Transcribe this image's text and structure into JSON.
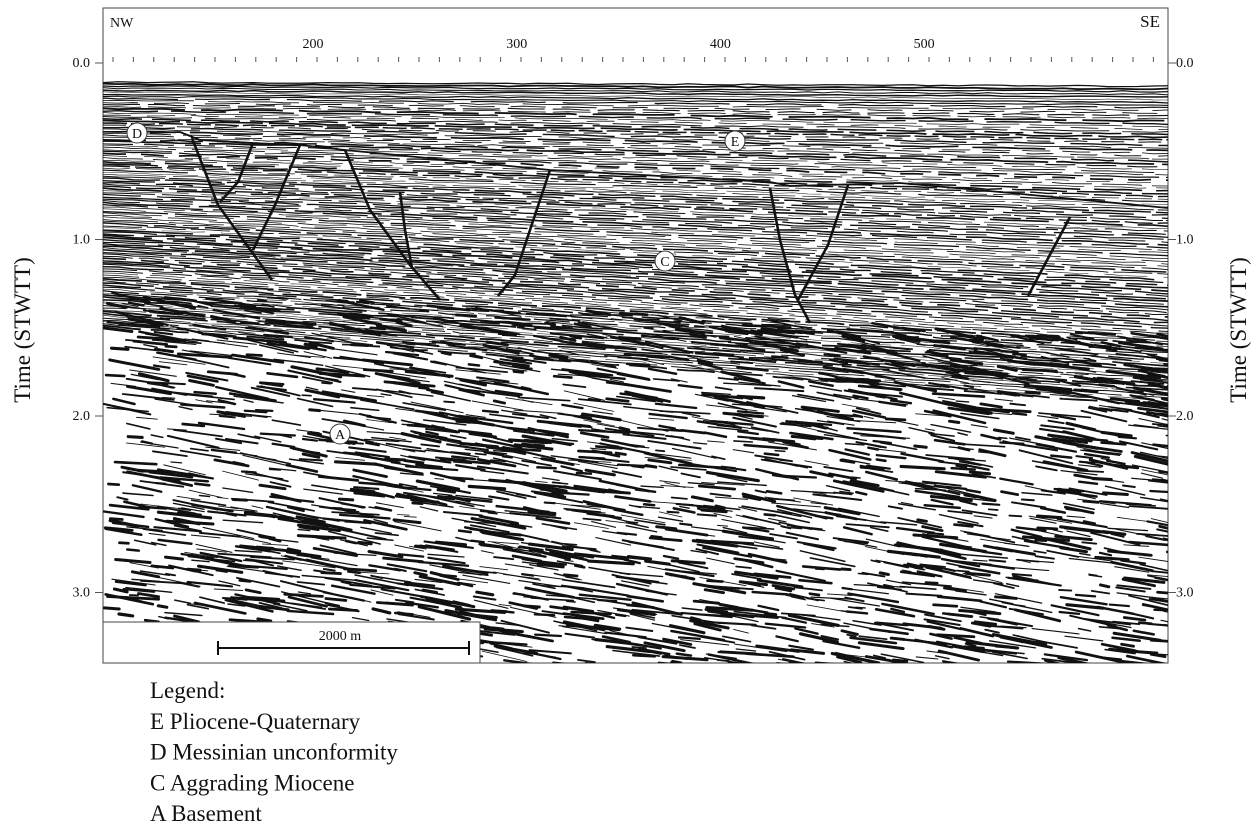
{
  "profile": {
    "direction_left": "NW",
    "direction_right": "SE",
    "top_ticks": [
      200,
      300,
      400,
      500
    ],
    "time_ticks": [
      "0.0",
      "1.0",
      "2.0",
      "3.0"
    ],
    "axis_label": "Time (STWTT)",
    "units": [
      {
        "label": "D"
      },
      {
        "label": "E"
      },
      {
        "label": "C"
      },
      {
        "label": "A"
      }
    ],
    "scale_bar": "2000 m"
  },
  "legend": {
    "title": "Legend:",
    "items": [
      "E Pliocene-Quaternary",
      "D Messinian unconformity",
      "C Aggrading Miocene",
      "A Basement"
    ]
  }
}
